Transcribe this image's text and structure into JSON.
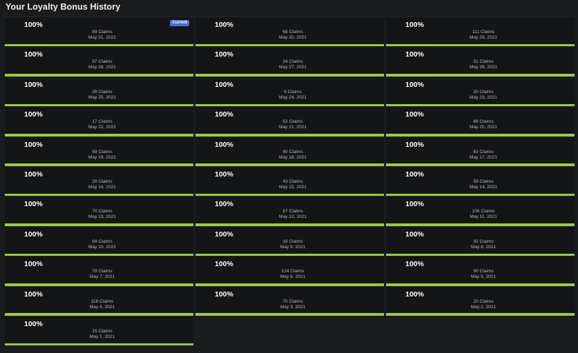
{
  "page": {
    "title": "Your Loyalty Bonus History"
  },
  "accent_color": "#9bcc3e",
  "badge_color": "#4a6fdc",
  "history": [
    {
      "percent": "100%",
      "progress": 100,
      "claims": "89 Claims",
      "date": "May 31, 2021",
      "badge": "Current"
    },
    {
      "percent": "100%",
      "progress": 100,
      "claims": "68 Claims",
      "date": "May 30, 2021"
    },
    {
      "percent": "100%",
      "progress": 100,
      "claims": "111 Claims",
      "date": "May 29, 2021"
    },
    {
      "percent": "100%",
      "progress": 100,
      "claims": "97 Claims",
      "date": "May 28, 2021"
    },
    {
      "percent": "100%",
      "progress": 100,
      "claims": "24 Claims",
      "date": "May 27, 2021"
    },
    {
      "percent": "100%",
      "progress": 100,
      "claims": "31 Claims",
      "date": "May 26, 2021"
    },
    {
      "percent": "100%",
      "progress": 100,
      "claims": "28 Claims",
      "date": "May 25, 2021"
    },
    {
      "percent": "100%",
      "progress": 100,
      "claims": "9 Claims",
      "date": "May 24, 2021"
    },
    {
      "percent": "100%",
      "progress": 100,
      "claims": "20 Claims",
      "date": "May 23, 2021"
    },
    {
      "percent": "100%",
      "progress": 100,
      "claims": "17 Claims",
      "date": "May 22, 2021"
    },
    {
      "percent": "100%",
      "progress": 100,
      "claims": "52 Claims",
      "date": "May 21, 2021"
    },
    {
      "percent": "100%",
      "progress": 100,
      "claims": "86 Claims",
      "date": "May 20, 2021"
    },
    {
      "percent": "100%",
      "progress": 100,
      "claims": "59 Claims",
      "date": "May 19, 2021"
    },
    {
      "percent": "100%",
      "progress": 100,
      "claims": "80 Claims",
      "date": "May 18, 2021"
    },
    {
      "percent": "100%",
      "progress": 100,
      "claims": "63 Claims",
      "date": "May 17, 2021"
    },
    {
      "percent": "100%",
      "progress": 100,
      "claims": "29 Claims",
      "date": "May 16, 2021"
    },
    {
      "percent": "100%",
      "progress": 100,
      "claims": "43 Claims",
      "date": "May 15, 2021"
    },
    {
      "percent": "100%",
      "progress": 100,
      "claims": "59 Claims",
      "date": "May 14, 2021"
    },
    {
      "percent": "100%",
      "progress": 100,
      "claims": "70 Claims",
      "date": "May 13, 2021"
    },
    {
      "percent": "100%",
      "progress": 100,
      "claims": "67 Claims",
      "date": "May 12, 2021"
    },
    {
      "percent": "100%",
      "progress": 100,
      "claims": "106 Claims",
      "date": "May 11, 2021"
    },
    {
      "percent": "100%",
      "progress": 100,
      "claims": "64 Claims",
      "date": "May 10, 2021"
    },
    {
      "percent": "100%",
      "progress": 100,
      "claims": "18 Claims",
      "date": "May 9, 2021"
    },
    {
      "percent": "100%",
      "progress": 100,
      "claims": "32 Claims",
      "date": "May 8, 2021"
    },
    {
      "percent": "100%",
      "progress": 100,
      "claims": "79 Claims",
      "date": "May 7, 2021"
    },
    {
      "percent": "100%",
      "progress": 100,
      "claims": "124 Claims",
      "date": "May 6, 2021"
    },
    {
      "percent": "100%",
      "progress": 100,
      "claims": "90 Claims",
      "date": "May 5, 2021"
    },
    {
      "percent": "100%",
      "progress": 100,
      "claims": "118 Claims",
      "date": "May 4, 2021"
    },
    {
      "percent": "100%",
      "progress": 100,
      "claims": "70 Claims",
      "date": "May 3, 2021"
    },
    {
      "percent": "100%",
      "progress": 100,
      "claims": "20 Claims",
      "date": "May 2, 2021"
    },
    {
      "percent": "100%",
      "progress": 100,
      "claims": "15 Claims",
      "date": "May 1, 2021"
    }
  ]
}
